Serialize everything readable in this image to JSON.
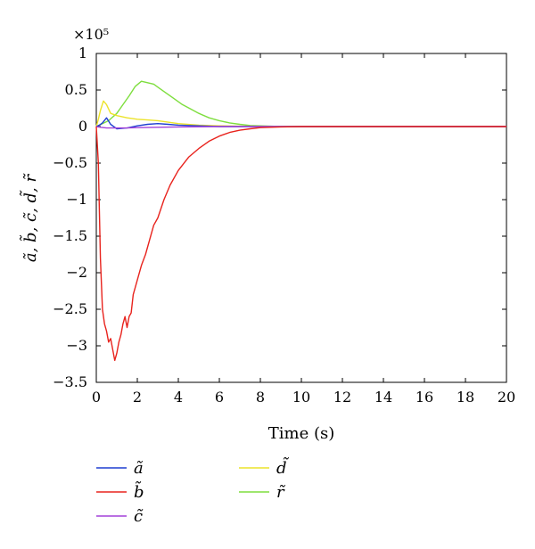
{
  "chart_data": {
    "type": "line",
    "xlabel": "Time (s)",
    "ylabel": "ã, b̃, c̃, d̃, r̃",
    "multiplier": "×10⁵",
    "xlim": [
      0,
      20
    ],
    "ylim": [
      -3.5,
      1
    ],
    "xticks": [
      "0",
      "2",
      "4",
      "6",
      "8",
      "10",
      "12",
      "14",
      "16",
      "18",
      "20"
    ],
    "yticks": [
      "1",
      "0.5",
      "0",
      "−0.5",
      "−1",
      "−1.5",
      "−2",
      "−2.5",
      "−3",
      "−3.5"
    ],
    "legend_position": "bottom",
    "series": [
      {
        "name": "ã",
        "color": "#1f3fd1",
        "x": [
          0,
          0.15,
          0.3,
          0.5,
          0.7,
          1.0,
          1.5,
          2.0,
          2.5,
          3.0,
          3.5,
          4.0,
          5.0,
          6.0,
          8.0,
          20.0
        ],
        "y": [
          0,
          0.02,
          0.05,
          0.12,
          0.03,
          -0.03,
          -0.02,
          0.01,
          0.03,
          0.04,
          0.03,
          0.02,
          0.01,
          0.0,
          0.0,
          0.0
        ]
      },
      {
        "name": "b̃",
        "color": "#e8231d",
        "x": [
          0,
          0.1,
          0.2,
          0.3,
          0.4,
          0.5,
          0.6,
          0.7,
          0.8,
          0.9,
          1.0,
          1.1,
          1.2,
          1.3,
          1.4,
          1.5,
          1.6,
          1.7,
          1.8,
          1.9,
          2.0,
          2.2,
          2.4,
          2.6,
          2.8,
          3.0,
          3.3,
          3.6,
          4.0,
          4.5,
          5.0,
          5.5,
          6.0,
          6.5,
          7.0,
          7.5,
          8.0,
          8.5,
          9.0,
          10.0,
          12.0,
          14.0,
          16.0,
          18.0,
          20.0
        ],
        "y": [
          0,
          -0.5,
          -1.8,
          -2.5,
          -2.7,
          -2.8,
          -2.95,
          -2.9,
          -3.05,
          -3.2,
          -3.1,
          -2.95,
          -2.85,
          -2.7,
          -2.6,
          -2.75,
          -2.6,
          -2.55,
          -2.3,
          -2.2,
          -2.1,
          -1.9,
          -1.75,
          -1.55,
          -1.35,
          -1.25,
          -1.0,
          -0.8,
          -0.6,
          -0.42,
          -0.3,
          -0.2,
          -0.13,
          -0.08,
          -0.05,
          -0.03,
          -0.015,
          -0.01,
          -0.005,
          0.0,
          0.0,
          0.0,
          0.0,
          0.0,
          0.0
        ]
      },
      {
        "name": "c̃",
        "color": "#a341d8",
        "x": [
          0,
          0.2,
          0.5,
          1.0,
          1.5,
          2.0,
          3.0,
          4.0,
          6.0,
          8.0,
          20.0
        ],
        "y": [
          0,
          -0.01,
          -0.02,
          -0.02,
          -0.02,
          -0.015,
          -0.01,
          -0.005,
          0.0,
          0.0,
          0.0
        ]
      },
      {
        "name": "d̃",
        "color": "#ece32a",
        "x": [
          0,
          0.1,
          0.2,
          0.35,
          0.5,
          0.7,
          1.0,
          1.5,
          2.0,
          2.5,
          3.0,
          3.5,
          4.0,
          5.0,
          6.0,
          7.0,
          8.0,
          20.0
        ],
        "y": [
          0,
          0.1,
          0.22,
          0.35,
          0.3,
          0.18,
          0.15,
          0.12,
          0.1,
          0.09,
          0.08,
          0.06,
          0.04,
          0.02,
          0.01,
          0.005,
          0.0,
          0.0
        ]
      },
      {
        "name": "r̃",
        "color": "#7ede3e",
        "x": [
          0,
          0.3,
          0.6,
          1.0,
          1.3,
          1.6,
          1.9,
          2.2,
          2.5,
          2.8,
          3.1,
          3.4,
          3.8,
          4.2,
          4.6,
          5.0,
          5.5,
          6.0,
          6.5,
          7.0,
          7.5,
          8.0,
          8.5,
          9.0,
          10.0,
          12.0,
          20.0
        ],
        "y": [
          0,
          0.04,
          0.08,
          0.18,
          0.3,
          0.42,
          0.55,
          0.62,
          0.6,
          0.58,
          0.52,
          0.46,
          0.38,
          0.3,
          0.24,
          0.18,
          0.12,
          0.08,
          0.05,
          0.03,
          0.015,
          0.01,
          0.005,
          0.0,
          0.0,
          0.0,
          0.0
        ]
      }
    ]
  }
}
